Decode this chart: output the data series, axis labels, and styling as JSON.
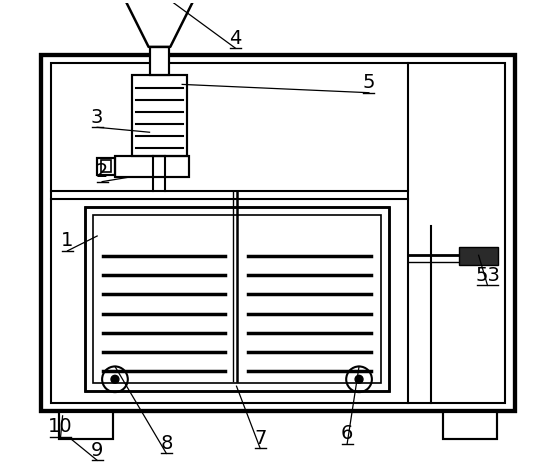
{
  "bg_color": "#ffffff",
  "line_color": "#000000",
  "fig_width": 5.58,
  "fig_height": 4.71,
  "dpi": 100
}
